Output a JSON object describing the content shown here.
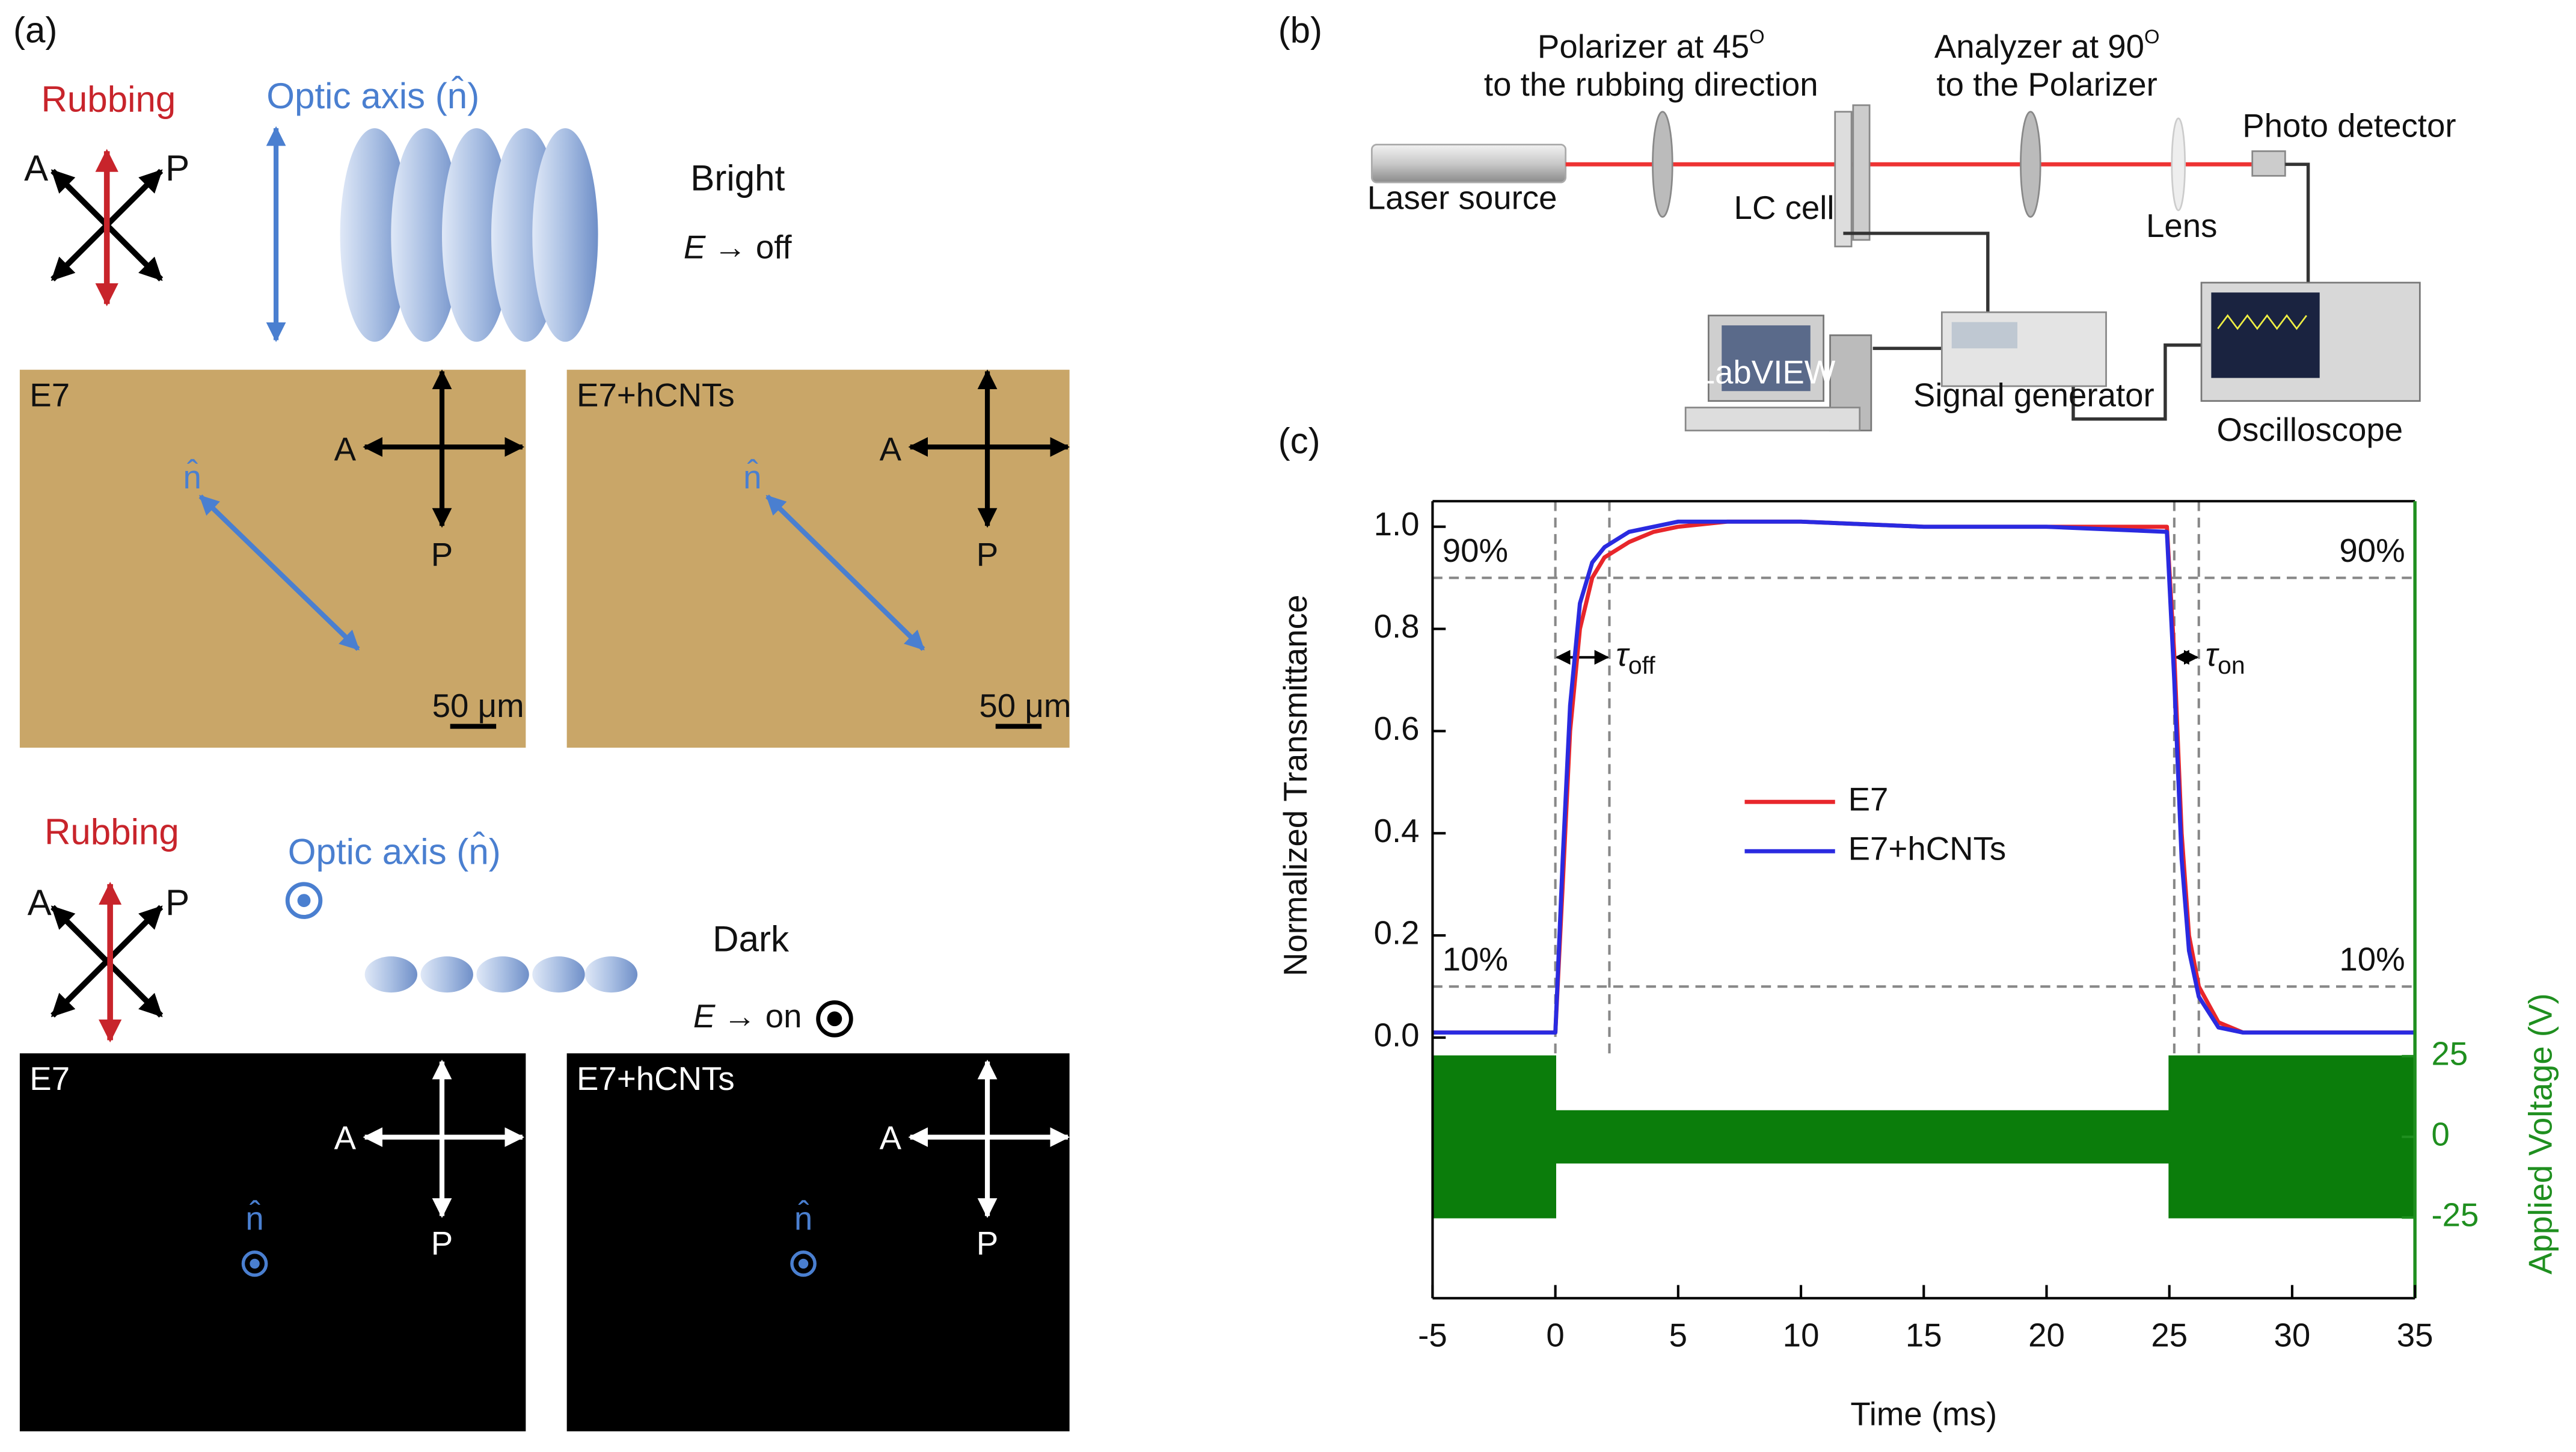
{
  "panel_a": {
    "label": "(a)",
    "bright": {
      "rubbing": "Rubbing",
      "analyzer": "A",
      "polarizer": "P",
      "optic_axis": "Optic axis (n̂)",
      "state": "Bright",
      "field": "E",
      "field_state": "→ off",
      "images": [
        {
          "name": "E7",
          "analyzer": "A",
          "polarizer": "P",
          "director": "n̂",
          "scale_bar": "50 μm"
        },
        {
          "name": "E7+hCNTs",
          "analyzer": "A",
          "polarizer": "P",
          "director": "n̂",
          "scale_bar": "50 μm"
        }
      ]
    },
    "dark": {
      "rubbing": "Rubbing",
      "analyzer": "A",
      "polarizer": "P",
      "optic_axis": "Optic axis (n̂)",
      "state": "Dark",
      "field": "E",
      "field_state": "→ on",
      "images": [
        {
          "name": "E7",
          "analyzer": "A",
          "polarizer": "P",
          "director": "n̂"
        },
        {
          "name": "E7+hCNTs",
          "analyzer": "A",
          "polarizer": "P",
          "director": "n̂"
        }
      ]
    }
  },
  "panel_b": {
    "label": "(b)",
    "polarizer": {
      "line1": "Polarizer at 45",
      "superscript": "O",
      "line2": "to the rubbing direction"
    },
    "analyzer": {
      "line1": "Analyzer at 90",
      "superscript": "O",
      "line2": "to the Polarizer"
    },
    "laser": "Laser source",
    "lc_cell": "LC cell",
    "lens": "Lens",
    "detector": "Photo detector",
    "computer": "LabVIEW",
    "signal_generator": "Signal generator",
    "oscilloscope": "Oscilloscope"
  },
  "panel_c_label": "(c)",
  "chart_data": {
    "type": "line",
    "x_label": "Time (ms)",
    "y_label": "Normalized Transmittance",
    "y2_label": "Applied Voltage (V)",
    "x": [
      -5,
      -2,
      0,
      0.3,
      0.6,
      1,
      1.5,
      2,
      3,
      4,
      5,
      7,
      10,
      15,
      20,
      24.9,
      25.2,
      25.5,
      25.8,
      26.2,
      27,
      28,
      30,
      35
    ],
    "series": [
      {
        "name": "E7",
        "color": "#e8262b",
        "values": [
          0.01,
          0.01,
          0.01,
          0.3,
          0.6,
          0.8,
          0.9,
          0.94,
          0.97,
          0.99,
          1.0,
          1.01,
          1.01,
          1.0,
          1.0,
          1.0,
          0.75,
          0.4,
          0.2,
          0.1,
          0.03,
          0.01,
          0.01,
          0.01
        ]
      },
      {
        "name": "E7+hCNTs",
        "color": "#2a2ae0",
        "values": [
          0.01,
          0.01,
          0.01,
          0.35,
          0.65,
          0.85,
          0.93,
          0.96,
          0.99,
          1.0,
          1.01,
          1.01,
          1.01,
          1.0,
          1.0,
          0.99,
          0.7,
          0.35,
          0.17,
          0.08,
          0.02,
          0.01,
          0.01,
          0.01
        ]
      }
    ],
    "voltage": {
      "axis": "y2",
      "color": "#0b7d0b",
      "x": [
        -5,
        0,
        0,
        25,
        25,
        35
      ],
      "values": [
        25,
        25,
        8,
        8,
        25,
        25
      ]
    },
    "hlines": [
      {
        "value": 0.9,
        "label": "90%"
      },
      {
        "value": 0.1,
        "label": "10%"
      }
    ],
    "vlines": [
      0,
      2.2,
      25.2,
      26.2
    ],
    "tau": [
      {
        "symbol": "τ",
        "sub": "off"
      },
      {
        "symbol": "τ",
        "sub": "on"
      }
    ],
    "xlim": [
      -5,
      35
    ],
    "xticks": [
      -5,
      0,
      5,
      10,
      15,
      20,
      25,
      30,
      35
    ],
    "ylim": [
      -0.51,
      1.05
    ],
    "yticks": [
      {
        "value": 0,
        "label": "0.0"
      },
      0.2,
      0.4,
      0.6,
      0.8,
      {
        "value": 1,
        "label": "1.0"
      }
    ],
    "y2lim": [
      -50,
      197
    ],
    "y2ticks": [
      -25,
      0,
      25
    ],
    "y2color": "#1f8f1f",
    "grid": false
  }
}
